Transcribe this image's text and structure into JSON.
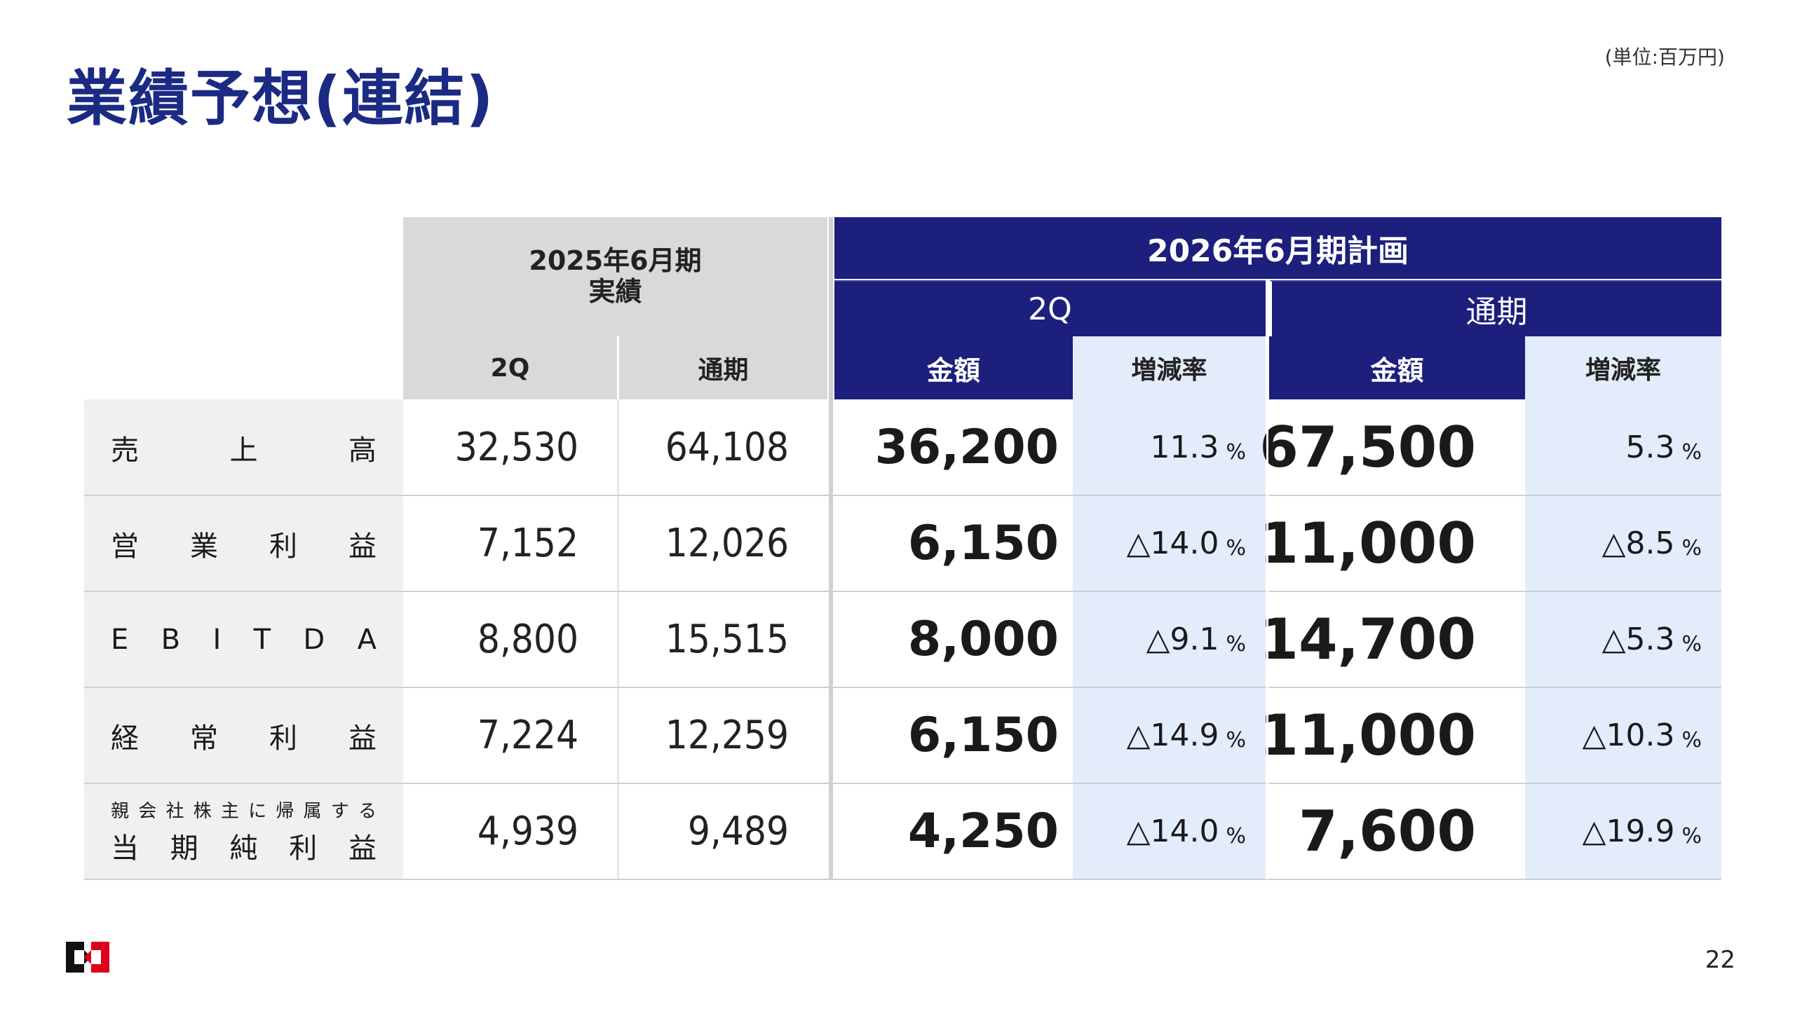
{
  "page": {
    "title": "業績予想(連結)",
    "unit_note": "(単位:百万円)",
    "page_number": "22"
  },
  "table": {
    "actual_header": "2025年6月期\n実績",
    "actual_header_line1": "2025年6月期",
    "actual_header_line2": "実績",
    "plan_header": "2026年6月期計画",
    "plan_2q_label": "2Q",
    "plan_full_label": "通期",
    "actual_cols": [
      "2Q",
      "通期"
    ],
    "plan_subcols": [
      "金額",
      "増減率",
      "金額",
      "増減率"
    ],
    "percent_sign": "%",
    "rows": [
      {
        "label": "売上高",
        "actual_2q": "32,530",
        "actual_full": "64,108",
        "plan_2q": "36,200",
        "plan_2q_rate": "11.3",
        "plan_full": "67,500",
        "plan_full_rate": "5.3"
      },
      {
        "label": "営業利益",
        "actual_2q": "7,152",
        "actual_full": "12,026",
        "plan_2q": "6,150",
        "plan_2q_rate": "△14.0",
        "plan_full": "11,000",
        "plan_full_rate": "△8.5"
      },
      {
        "label": "EBITDA",
        "actual_2q": "8,800",
        "actual_full": "15,515",
        "plan_2q": "8,000",
        "plan_2q_rate": "△9.1",
        "plan_full": "14,700",
        "plan_full_rate": "△5.3"
      },
      {
        "label": "経常利益",
        "actual_2q": "7,224",
        "actual_full": "12,259",
        "plan_2q": "6,150",
        "plan_2q_rate": "△14.9",
        "plan_full": "11,000",
        "plan_full_rate": "△10.3"
      },
      {
        "label_small": "親会社株主に帰属する",
        "label": "当期純利益",
        "actual_2q": "4,939",
        "actual_full": "9,489",
        "plan_2q": "4,250",
        "plan_2q_rate": "△14.0",
        "plan_full": "7,600",
        "plan_full_rate": "△19.9"
      }
    ]
  },
  "colors": {
    "navy": "#1c1f7c",
    "title_blue": "#1b2a83",
    "light_blue": "#e3ecfb",
    "gray_header": "#d9d9d9",
    "label_bg": "#f0f0f0",
    "logo_red": "#e0001b",
    "logo_black": "#111111"
  }
}
